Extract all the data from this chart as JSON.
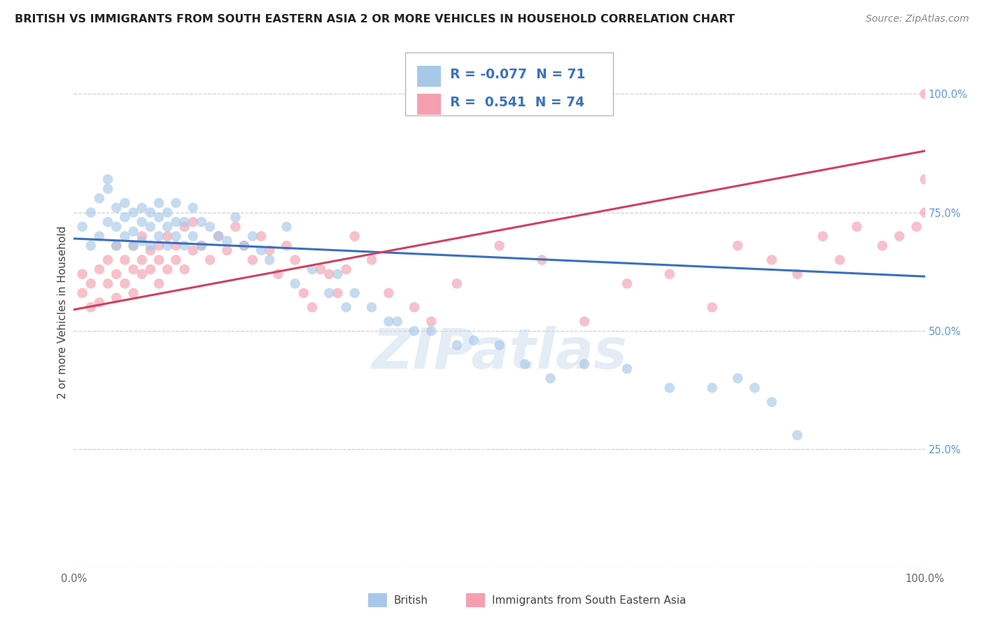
{
  "title": "BRITISH VS IMMIGRANTS FROM SOUTH EASTERN ASIA 2 OR MORE VEHICLES IN HOUSEHOLD CORRELATION CHART",
  "source": "Source: ZipAtlas.com",
  "ylabel": "2 or more Vehicles in Household",
  "xlim": [
    0.0,
    1.0
  ],
  "ylim": [
    0.0,
    1.08
  ],
  "blue_color": "#a8c8e8",
  "pink_color": "#f4a0b0",
  "line_blue_color": "#3a6fbf",
  "line_pink_color": "#d04060",
  "blue_R": "-0.077",
  "blue_N": "71",
  "pink_R": "0.541",
  "pink_N": "74",
  "blue_line_y0": 0.695,
  "blue_line_y1": 0.615,
  "pink_line_y0": 0.545,
  "pink_line_y1": 0.88,
  "watermark": "ZIPatlas",
  "bg_color": "#ffffff",
  "grid_color": "#d0d0d0",
  "title_color": "#222222",
  "source_color": "#888888",
  "ylabel_color": "#444444",
  "right_tick_color": "#5b9bd5",
  "bottom_tick_color": "#666666",
  "title_fontsize": 11.5,
  "legend_fontsize": 13.5,
  "ylabel_fontsize": 11,
  "tick_fontsize": 10.5,
  "source_fontsize": 10,
  "scatter_size": 110,
  "scatter_alpha": 0.65,
  "yticks": [
    0.0,
    0.25,
    0.5,
    0.75,
    1.0
  ],
  "yticklabels_right": [
    "",
    "25.0%",
    "50.0%",
    "75.0%",
    "100.0%"
  ],
  "blue_x": [
    0.01,
    0.02,
    0.02,
    0.03,
    0.03,
    0.04,
    0.04,
    0.04,
    0.05,
    0.05,
    0.05,
    0.06,
    0.06,
    0.06,
    0.07,
    0.07,
    0.07,
    0.08,
    0.08,
    0.08,
    0.09,
    0.09,
    0.09,
    0.1,
    0.1,
    0.1,
    0.11,
    0.11,
    0.11,
    0.12,
    0.12,
    0.12,
    0.13,
    0.13,
    0.14,
    0.14,
    0.15,
    0.15,
    0.16,
    0.17,
    0.18,
    0.19,
    0.2,
    0.21,
    0.22,
    0.23,
    0.25,
    0.26,
    0.28,
    0.3,
    0.31,
    0.32,
    0.33,
    0.35,
    0.37,
    0.38,
    0.4,
    0.42,
    0.45,
    0.47,
    0.5,
    0.53,
    0.56,
    0.6,
    0.65,
    0.7,
    0.75,
    0.78,
    0.8,
    0.82,
    0.85
  ],
  "blue_y": [
    0.72,
    0.68,
    0.75,
    0.7,
    0.78,
    0.73,
    0.8,
    0.82,
    0.72,
    0.76,
    0.68,
    0.74,
    0.7,
    0.77,
    0.75,
    0.71,
    0.68,
    0.73,
    0.76,
    0.69,
    0.72,
    0.75,
    0.68,
    0.74,
    0.7,
    0.77,
    0.72,
    0.68,
    0.75,
    0.73,
    0.7,
    0.77,
    0.68,
    0.73,
    0.76,
    0.7,
    0.68,
    0.73,
    0.72,
    0.7,
    0.69,
    0.74,
    0.68,
    0.7,
    0.67,
    0.65,
    0.72,
    0.6,
    0.63,
    0.58,
    0.62,
    0.55,
    0.58,
    0.55,
    0.52,
    0.52,
    0.5,
    0.5,
    0.47,
    0.48,
    0.47,
    0.43,
    0.4,
    0.43,
    0.42,
    0.38,
    0.38,
    0.4,
    0.38,
    0.35,
    0.28
  ],
  "pink_x": [
    0.01,
    0.01,
    0.02,
    0.02,
    0.03,
    0.03,
    0.04,
    0.04,
    0.05,
    0.05,
    0.05,
    0.06,
    0.06,
    0.07,
    0.07,
    0.07,
    0.08,
    0.08,
    0.08,
    0.09,
    0.09,
    0.1,
    0.1,
    0.1,
    0.11,
    0.11,
    0.12,
    0.12,
    0.13,
    0.13,
    0.14,
    0.14,
    0.15,
    0.16,
    0.17,
    0.18,
    0.19,
    0.2,
    0.21,
    0.22,
    0.23,
    0.24,
    0.25,
    0.26,
    0.27,
    0.28,
    0.29,
    0.3,
    0.31,
    0.32,
    0.33,
    0.35,
    0.37,
    0.4,
    0.42,
    0.45,
    0.5,
    0.55,
    0.6,
    0.65,
    0.7,
    0.75,
    0.78,
    0.82,
    0.85,
    0.88,
    0.9,
    0.92,
    0.95,
    0.97,
    0.99,
    1.0,
    1.0,
    1.0
  ],
  "pink_y": [
    0.58,
    0.62,
    0.6,
    0.55,
    0.63,
    0.56,
    0.6,
    0.65,
    0.57,
    0.62,
    0.68,
    0.6,
    0.65,
    0.63,
    0.68,
    0.58,
    0.65,
    0.62,
    0.7,
    0.63,
    0.67,
    0.65,
    0.6,
    0.68,
    0.63,
    0.7,
    0.65,
    0.68,
    0.72,
    0.63,
    0.67,
    0.73,
    0.68,
    0.65,
    0.7,
    0.67,
    0.72,
    0.68,
    0.65,
    0.7,
    0.67,
    0.62,
    0.68,
    0.65,
    0.58,
    0.55,
    0.63,
    0.62,
    0.58,
    0.63,
    0.7,
    0.65,
    0.58,
    0.55,
    0.52,
    0.6,
    0.68,
    0.65,
    0.52,
    0.6,
    0.62,
    0.55,
    0.68,
    0.65,
    0.62,
    0.7,
    0.65,
    0.72,
    0.68,
    0.7,
    0.72,
    0.75,
    0.82,
    1.0
  ]
}
